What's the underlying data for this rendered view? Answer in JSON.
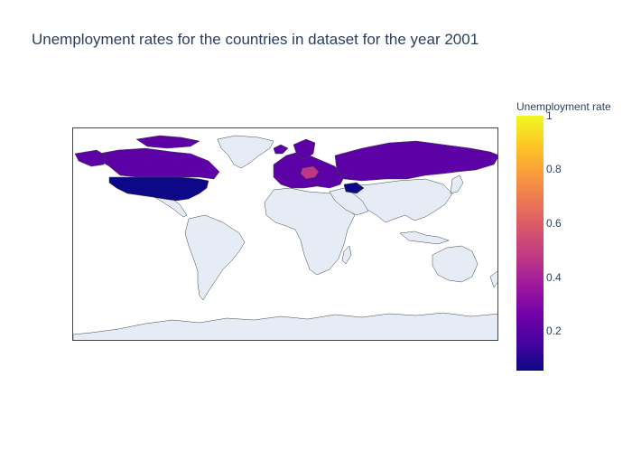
{
  "title": "Unemployment rates for the countries in dataset for the year 2001",
  "colorbar": {
    "title": "Unemployment rate",
    "ticks": [
      "1",
      "0.8",
      "0.6",
      "0.4",
      "0.2"
    ],
    "tick_values": [
      1,
      0.8,
      0.6,
      0.4,
      0.2
    ],
    "range": [
      0.05,
      1
    ],
    "colorscale": "plasma"
  },
  "map": {
    "projection": "natural earth",
    "land_color": "#e5ecf6",
    "border_color": "#444444",
    "background": "#ffffff"
  },
  "colors": {
    "low": "#0d0887",
    "mid_low": "#5c01a6",
    "mid": "#7201a8",
    "mid_high": "#bd3786"
  },
  "highlighted_regions": [
    {
      "region": "United States",
      "level": "low"
    },
    {
      "region": "Canada",
      "level": "mid_low"
    },
    {
      "region": "Greenland",
      "level": "mid_low"
    },
    {
      "region": "Russia",
      "level": "mid_low"
    },
    {
      "region": "Europe",
      "level": "mid_low"
    },
    {
      "region": "Central Europe",
      "level": "mid_high"
    }
  ]
}
